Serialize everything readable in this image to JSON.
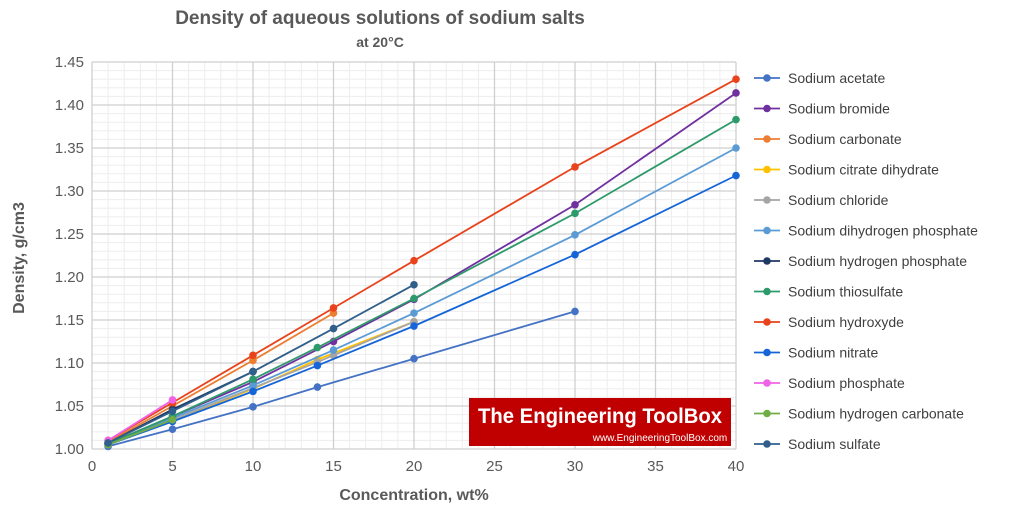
{
  "chart_data": {
    "type": "line",
    "title": "Density of aqueous solutions of sodium salts",
    "subtitle": "at 20°C",
    "xlabel": "Concentration, wt%",
    "ylabel": "Density, g/cm3",
    "xlim": [
      0,
      40
    ],
    "ylim": [
      1.0,
      1.45
    ],
    "x_ticks": [
      0,
      5,
      10,
      15,
      20,
      25,
      30,
      35,
      40
    ],
    "x_tick_labels": [
      "0",
      "5",
      "10",
      "15",
      "20",
      "25",
      "30",
      "35",
      "40"
    ],
    "y_ticks": [
      1.0,
      1.05,
      1.1,
      1.15,
      1.2,
      1.25,
      1.3,
      1.35,
      1.4,
      1.45
    ],
    "y_tick_labels": [
      "1.00",
      "1.05",
      "1.10",
      "1.15",
      "1.20",
      "1.25",
      "1.30",
      "1.35",
      "1.40",
      "1.45"
    ],
    "grid": true,
    "minor_grid": true,
    "legend_position": "right",
    "series": [
      {
        "name": "Sodium acetate",
        "color": "#4472C4",
        "points": [
          [
            1,
            1.003
          ],
          [
            5,
            1.023
          ],
          [
            10,
            1.049
          ],
          [
            14,
            1.072
          ],
          [
            20,
            1.105
          ],
          [
            30,
            1.16
          ]
        ]
      },
      {
        "name": "Sodium bromide",
        "color": "#7030A0",
        "points": [
          [
            1,
            1.006
          ],
          [
            5,
            1.038
          ],
          [
            10,
            1.078
          ],
          [
            15,
            1.125
          ],
          [
            20,
            1.174
          ],
          [
            30,
            1.284
          ],
          [
            40,
            1.414
          ]
        ]
      },
      {
        "name": "Sodium carbonate",
        "color": "#ED7D31",
        "points": [
          [
            1,
            1.008
          ],
          [
            5,
            1.05
          ],
          [
            10,
            1.103
          ],
          [
            15,
            1.158
          ]
        ]
      },
      {
        "name": "Sodium citrate dihydrate",
        "color": "#FFC000",
        "points": [
          [
            1,
            1.005
          ],
          [
            5,
            1.033
          ],
          [
            10,
            1.07
          ],
          [
            14,
            1.104
          ],
          [
            20,
            1.148
          ]
        ]
      },
      {
        "name": "Sodium chloride",
        "color": "#A5A5A5",
        "points": [
          [
            1,
            1.005
          ],
          [
            5,
            1.034
          ],
          [
            10,
            1.071
          ],
          [
            14,
            1.101
          ],
          [
            15,
            1.109
          ],
          [
            20,
            1.148
          ]
        ]
      },
      {
        "name": "Sodium dihydrogen phosphate",
        "color": "#5B9BD5",
        "points": [
          [
            1,
            1.006
          ],
          [
            5,
            1.036
          ],
          [
            10,
            1.074
          ],
          [
            15,
            1.115
          ],
          [
            20,
            1.158
          ],
          [
            30,
            1.249
          ],
          [
            40,
            1.35
          ]
        ]
      },
      {
        "name": "Sodium hydrogen phosphate",
        "color": "#1F3864",
        "points": [
          [
            1,
            1.007
          ],
          [
            5,
            1.046
          ],
          [
            10,
            1.09
          ]
        ]
      },
      {
        "name": "Sodium thiosulfate",
        "color": "#2E9A6B",
        "points": [
          [
            1,
            1.006
          ],
          [
            5,
            1.038
          ],
          [
            10,
            1.081
          ],
          [
            14,
            1.118
          ],
          [
            20,
            1.175
          ],
          [
            30,
            1.274
          ],
          [
            40,
            1.383
          ]
        ]
      },
      {
        "name": "Sodium hydroxyde",
        "color": "#E8431B",
        "points": [
          [
            1,
            1.01
          ],
          [
            5,
            1.054
          ],
          [
            10,
            1.109
          ],
          [
            15,
            1.164
          ],
          [
            20,
            1.219
          ],
          [
            30,
            1.328
          ],
          [
            40,
            1.43
          ]
        ]
      },
      {
        "name": "Sodium nitrate",
        "color": "#1565D8",
        "points": [
          [
            1,
            1.005
          ],
          [
            5,
            1.032
          ],
          [
            10,
            1.067
          ],
          [
            14,
            1.097
          ],
          [
            20,
            1.143
          ],
          [
            30,
            1.226
          ],
          [
            40,
            1.318
          ]
        ]
      },
      {
        "name": "Sodium phosphate",
        "color": "#F062E6",
        "points": [
          [
            1,
            1.01
          ],
          [
            5,
            1.057
          ]
        ]
      },
      {
        "name": "Sodium hydrogen carbonate",
        "color": "#70AD47",
        "points": [
          [
            1,
            1.005
          ],
          [
            5,
            1.034
          ]
        ]
      },
      {
        "name": "Sodium sulfate",
        "color": "#2F5F8A",
        "points": [
          [
            1,
            1.007
          ],
          [
            5,
            1.044
          ],
          [
            10,
            1.09
          ],
          [
            15,
            1.14
          ],
          [
            20,
            1.191
          ]
        ]
      }
    ]
  },
  "watermark": {
    "brand": "The Engineering ToolBox",
    "url": "www.EngineeringToolBox.com",
    "bg_color": "#C00000",
    "text_color": "#FFFFFF"
  }
}
